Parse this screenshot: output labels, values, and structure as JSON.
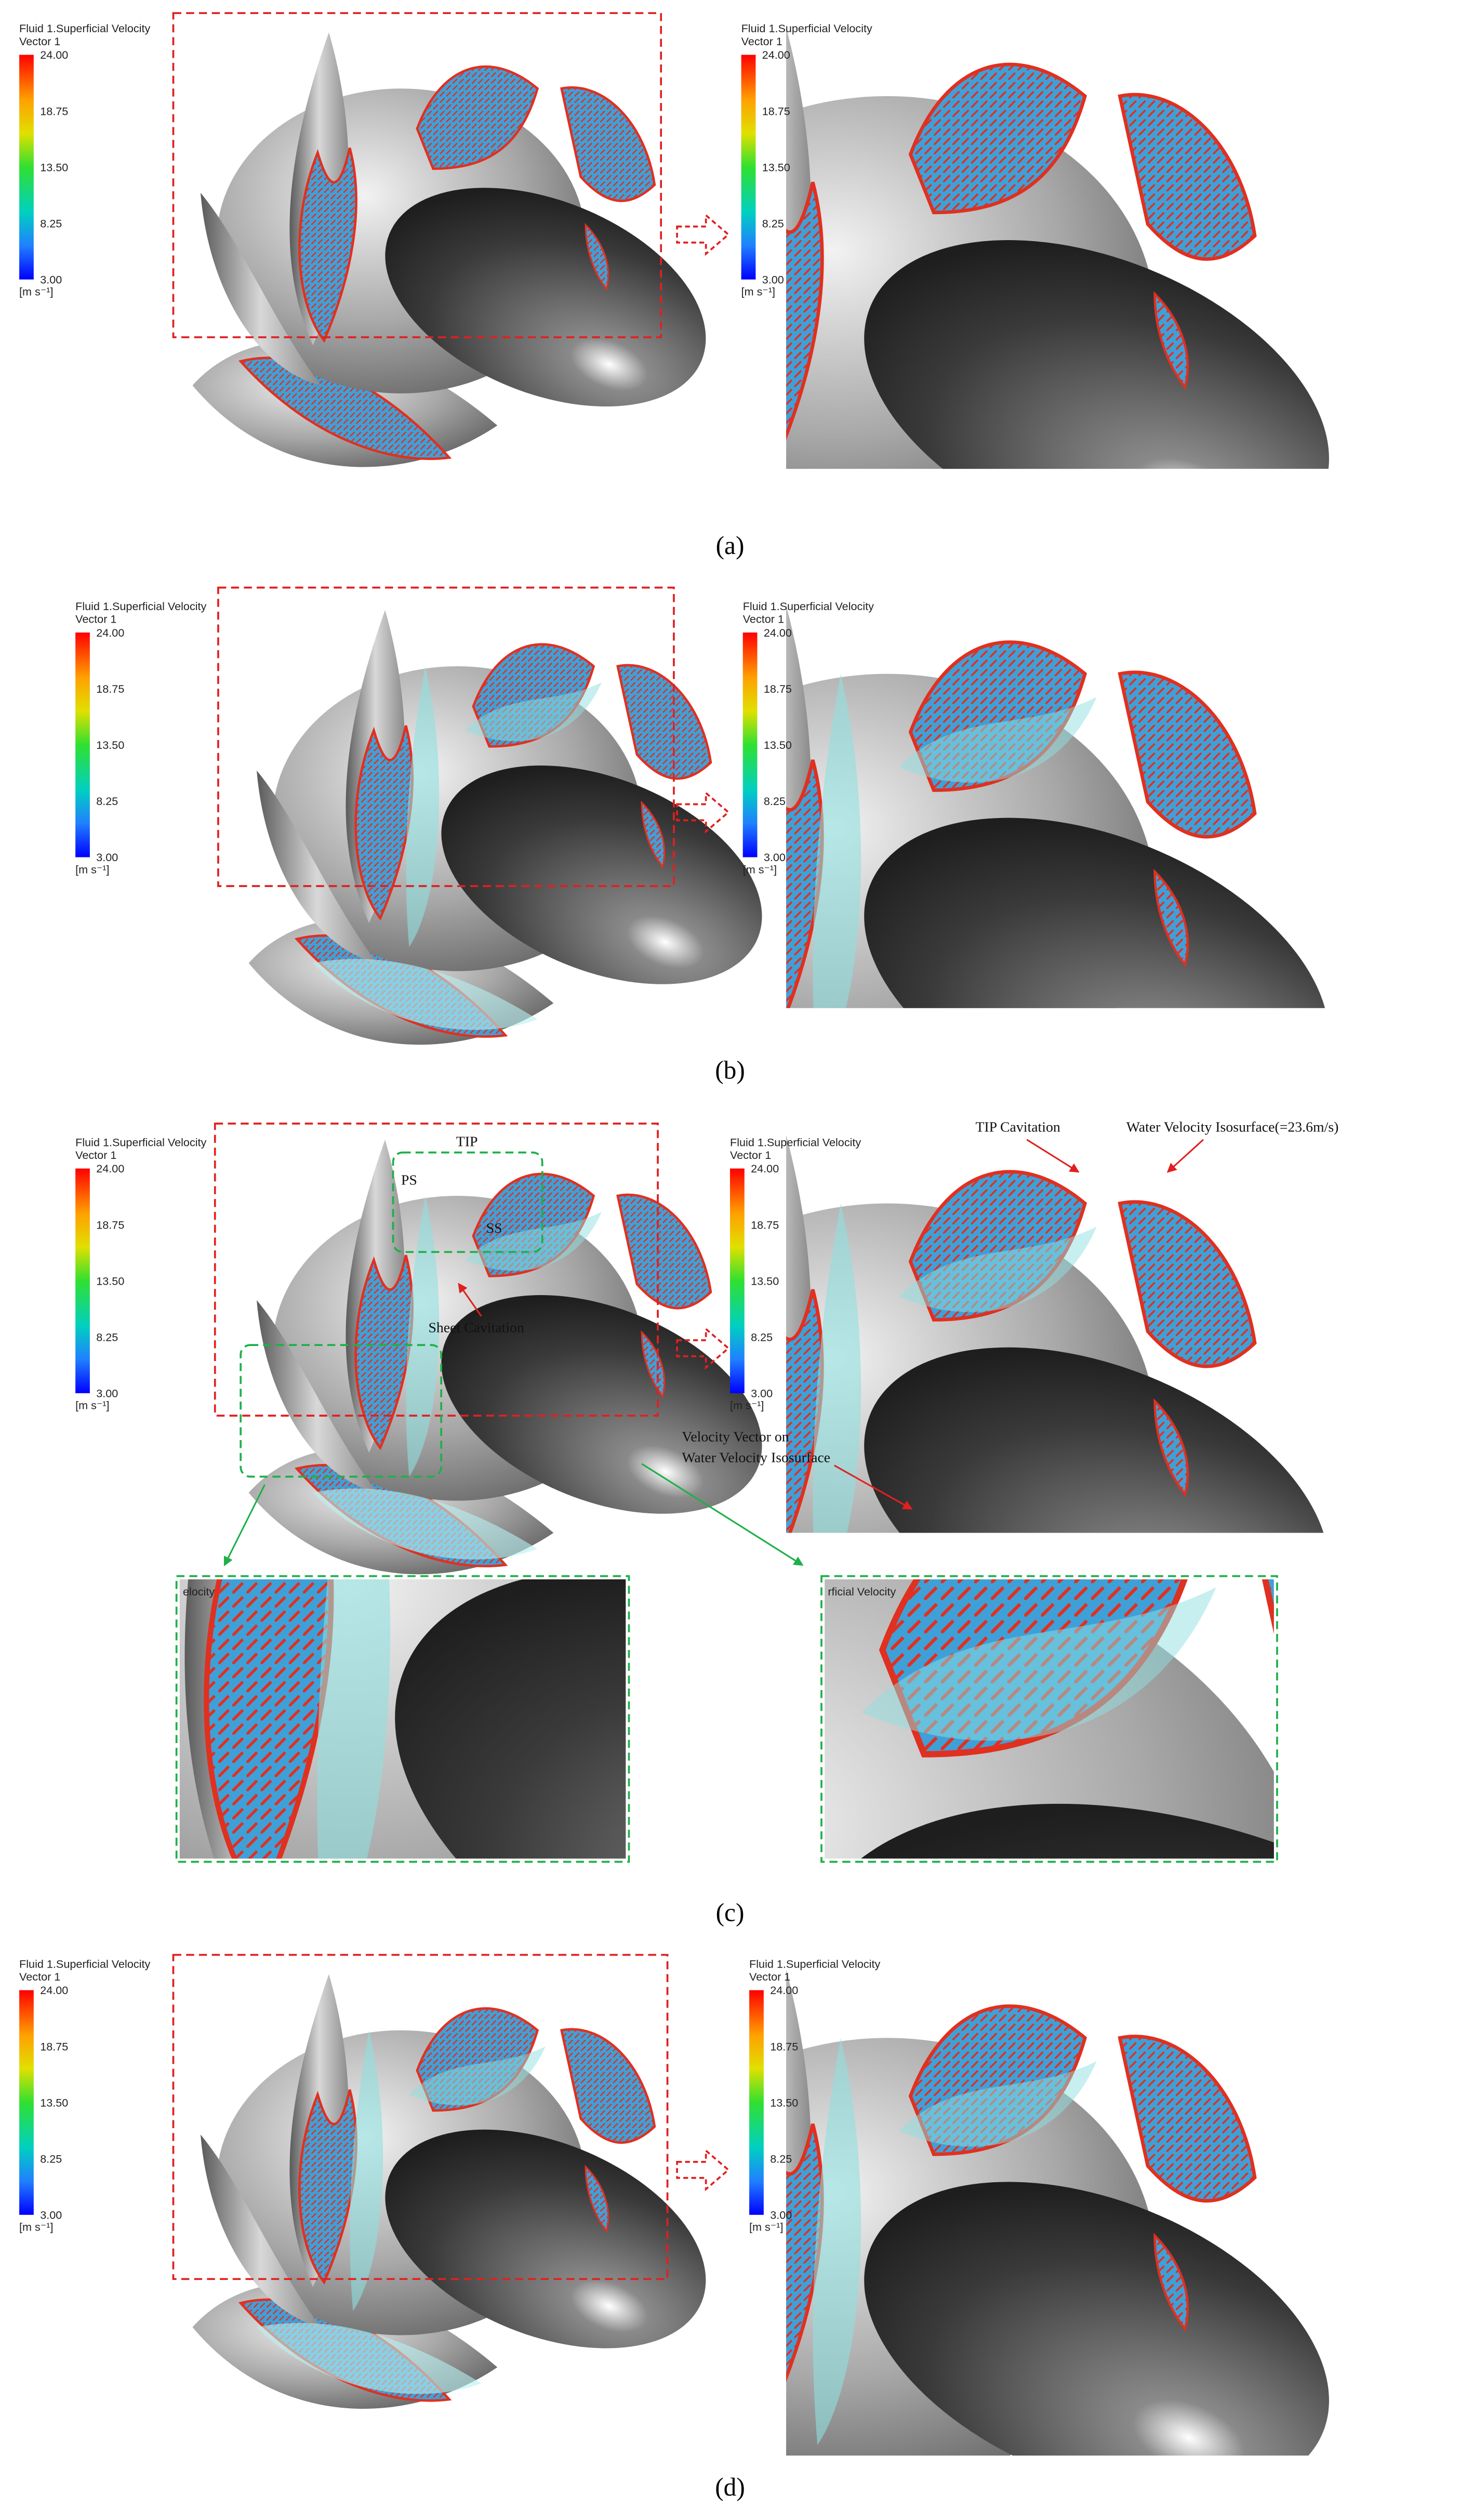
{
  "legend": {
    "title": "Fluid 1.Superficial Velocity",
    "subtitle": "Vector 1",
    "ticks": [
      "24.00",
      "18.75",
      "13.50",
      "8.25",
      "3.00"
    ],
    "unit": "[m s⁻¹]"
  },
  "panels": [
    {
      "label": "(a)"
    },
    {
      "label": "(b)"
    },
    {
      "label": "(c)",
      "annotations": {
        "tip": "TIP",
        "ps": "PS",
        "ss": "SS",
        "sheet": "Sheet Cavitation",
        "tip_cavitation": "TIP Cavitation",
        "isosurface": "Water Velocity Isosurface(=23.6m/s)",
        "vector_line1": "Velocity Vector on",
        "vector_line2": "Water Velocity Isosurface"
      },
      "zoom_labels": [
        "elocity",
        "rficial Velocity"
      ]
    },
    {
      "label": "(d)"
    }
  ]
}
